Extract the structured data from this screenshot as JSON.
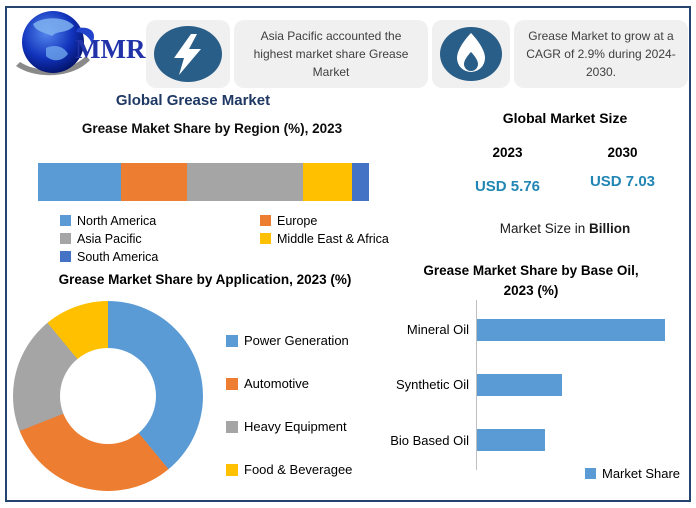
{
  "brand": {
    "logo_text": "MMR"
  },
  "header": {
    "badge1": {
      "icon": "lightning-icon",
      "text": "Asia Pacific accounted the highest market share Grease Market"
    },
    "badge2": {
      "icon": "flame-icon",
      "text": "Grease Market to grow at a CAGR of 2.9% during 2024-2030."
    }
  },
  "main_title": "Global Grease Market",
  "market_size": {
    "title": "Global Market Size",
    "year1": "2023",
    "year2": "2030",
    "value1": "USD 5.76",
    "value2": "USD 7.03",
    "note_prefix": "Market Size in",
    "note_bold": "Billion"
  },
  "colors": {
    "navy_title": "#1F3864",
    "border": "#26456E",
    "badge_bg": "#F0F0F0",
    "badge_icon": "#295E88",
    "usd_blue": "#2186B4",
    "axis_gray": "#BFBFBF"
  },
  "chart_data": [
    {
      "type": "bar",
      "subtype": "stacked-horizontal",
      "title": "Grease Maket Share by Region (%), 2023",
      "categories": [
        "North America",
        "Europe",
        "Asia Pacific",
        "Middle East & Africa",
        "South America"
      ],
      "values": [
        25,
        20,
        35,
        15,
        5
      ],
      "colors": [
        "#5B9BD5",
        "#ED7D31",
        "#A5A5A5",
        "#FFC000",
        "#4472C4"
      ],
      "xlim": [
        0,
        100
      ],
      "legend_position": "bottom"
    },
    {
      "type": "pie",
      "subtype": "donut",
      "title": "Grease Market Share by Application, 2023 (%)",
      "categories": [
        "Power Generation",
        "Automotive",
        "Heavy Equipment",
        "Food & Beveragee"
      ],
      "values": [
        39,
        30,
        20,
        11
      ],
      "colors": [
        "#5B9BD5",
        "#ED7D31",
        "#A5A5A5",
        "#FFC000"
      ],
      "start_angle_deg": 0,
      "direction": "clockwise",
      "legend_position": "right"
    },
    {
      "type": "bar",
      "subtype": "horizontal",
      "title": "Grease Market Share by Base Oil, 2023 (%)",
      "categories": [
        "Mineral Oil",
        "Synthetic Oil",
        "Bio Based Oil"
      ],
      "series": [
        {
          "name": "Market Share",
          "values": [
            55,
            25,
            20
          ]
        }
      ],
      "color": "#5B9BD5",
      "xlim": [
        0,
        62
      ],
      "legend_position": "bottom-right"
    }
  ]
}
